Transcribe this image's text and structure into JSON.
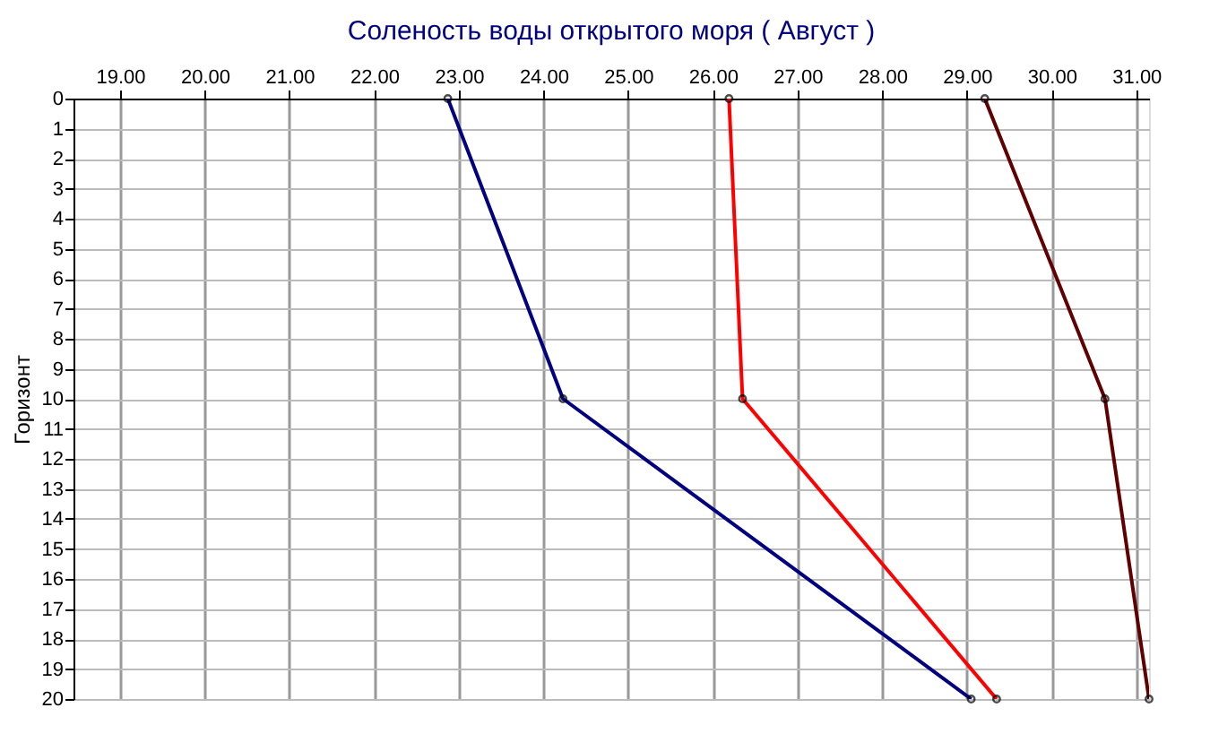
{
  "chart_data": {
    "type": "line",
    "title": "Соленость воды открытого моря    ( Август )",
    "ylabel": "Горизонт",
    "xlim": [
      18.45,
      31.15
    ],
    "xticks": [
      {
        "value": 19,
        "label": "19.00"
      },
      {
        "value": 20,
        "label": "20.00"
      },
      {
        "value": 21,
        "label": "21.00"
      },
      {
        "value": 22,
        "label": "22.00"
      },
      {
        "value": 23,
        "label": "23.00"
      },
      {
        "value": 24,
        "label": "24.00"
      },
      {
        "value": 25,
        "label": "25.00"
      },
      {
        "value": 26,
        "label": "26.00"
      },
      {
        "value": 27,
        "label": "27.00"
      },
      {
        "value": 28,
        "label": "28.00"
      },
      {
        "value": 29,
        "label": "29.00"
      },
      {
        "value": 30,
        "label": "30.00"
      },
      {
        "value": 31,
        "label": "31.00"
      }
    ],
    "ylim": [
      20,
      0
    ],
    "yticks": [
      0,
      1,
      2,
      3,
      4,
      5,
      6,
      7,
      8,
      9,
      10,
      11,
      12,
      13,
      14,
      15,
      16,
      17,
      18,
      19,
      20
    ],
    "grid": true,
    "marker": "circle",
    "line_style": "solid",
    "legend": false,
    "series": [
      {
        "color": "#000080",
        "x": [
          22.87,
          24.23,
          29.05
        ],
        "values": [
          0,
          10,
          20
        ]
      },
      {
        "color": "#ff0000",
        "x": [
          26.19,
          26.35,
          29.35
        ],
        "values": [
          0,
          10,
          20
        ]
      },
      {
        "color": "#600000",
        "x": [
          29.21,
          30.63,
          31.15
        ],
        "values": [
          0,
          10,
          20
        ]
      }
    ]
  }
}
